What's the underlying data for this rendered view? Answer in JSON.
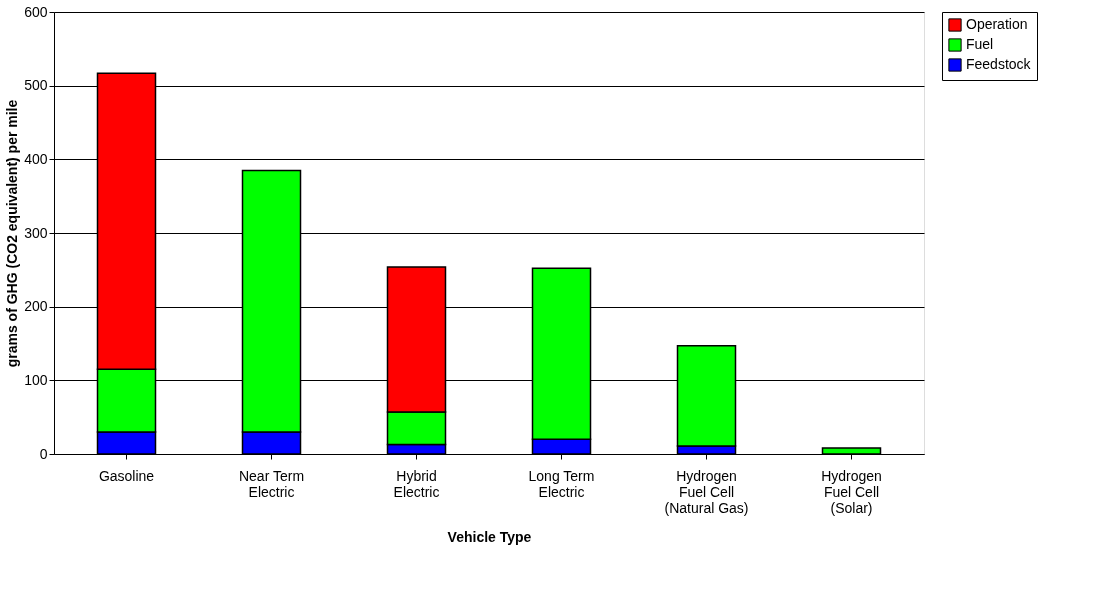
{
  "chart_data": {
    "type": "bar",
    "stacked": true,
    "xlabel": "Vehicle Type",
    "ylabel": "grams of GHG (CO2 equivalent) per mile",
    "categories": [
      "Gasoline",
      "Near Term\nElectric",
      "Hybrid\nElectric",
      "Long Term\nElectric",
      "Hydrogen\nFuel Cell\n(Natural Gas)",
      "Hydrogen\nFuel Cell\n(Solar)"
    ],
    "series": [
      {
        "name": "Feedstock",
        "color": "#0000ff",
        "values": [
          30,
          30,
          13,
          20,
          11,
          null
        ]
      },
      {
        "name": "Fuel",
        "color": "#00ff00",
        "values": [
          85,
          355,
          44,
          232,
          136,
          8
        ]
      },
      {
        "name": "Operation",
        "color": "#ff0000",
        "values": [
          402,
          null,
          197,
          null,
          null,
          null
        ]
      }
    ],
    "ylim": [
      0,
      600
    ],
    "yticks": [
      0,
      100,
      200,
      300,
      400,
      500,
      600
    ],
    "grid": "y",
    "legend": "right"
  }
}
